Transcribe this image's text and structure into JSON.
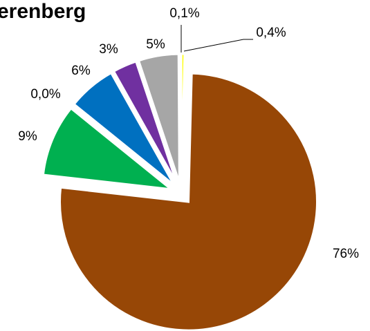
{
  "chart_data": {
    "type": "pie",
    "title": "erenberg",
    "values": [
      0.4,
      76,
      9,
      0.0,
      6,
      3,
      5,
      0.1
    ],
    "value_labels": [
      "0,4%",
      "76%",
      "9%",
      "0,0%",
      "6%",
      "3%",
      "5%",
      "0,1%"
    ],
    "colors": [
      "#ffff00",
      "#974706",
      "#00b050",
      "#ffffff",
      "#0070c0",
      "#7030a0",
      "#a6a6a6",
      "#000000"
    ]
  }
}
